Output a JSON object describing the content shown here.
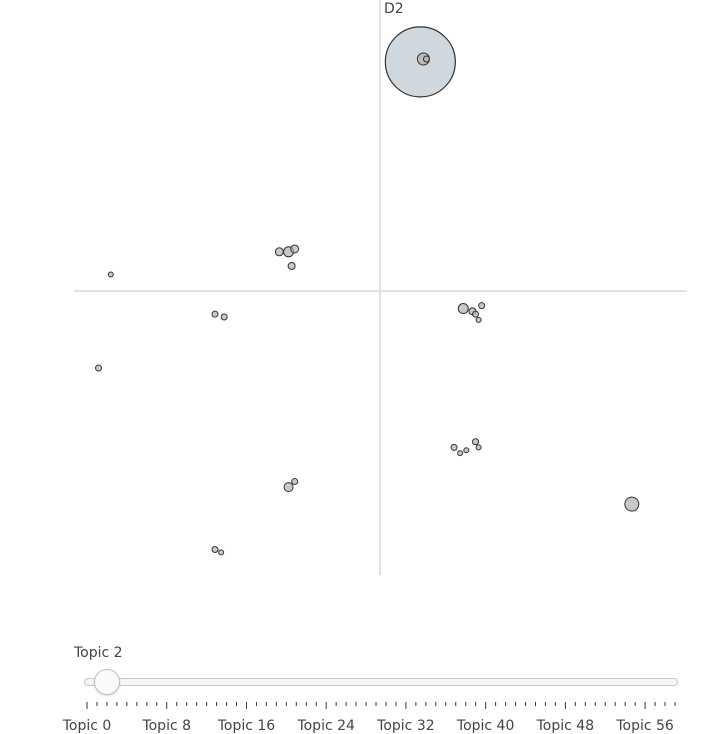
{
  "chart_data": {
    "type": "scatter",
    "xlabel": "",
    "ylabel": "D2",
    "xlim": [
      -10,
      10
    ],
    "ylim": [
      -10,
      10
    ],
    "grid": false,
    "points": [
      {
        "x": 1.3,
        "y": 8.1,
        "size": 35,
        "highlighted": true
      },
      {
        "x": 1.4,
        "y": 8.2,
        "size": 6
      },
      {
        "x": 1.5,
        "y": 8.2,
        "size": 3
      },
      {
        "x": -8.8,
        "y": 0.6,
        "size": 2.5
      },
      {
        "x": -3.3,
        "y": 1.4,
        "size": 4
      },
      {
        "x": -3.0,
        "y": 1.4,
        "size": 5
      },
      {
        "x": -2.8,
        "y": 1.5,
        "size": 4
      },
      {
        "x": -2.9,
        "y": 0.9,
        "size": 3.5
      },
      {
        "x": -5.4,
        "y": -0.8,
        "size": 3
      },
      {
        "x": -5.1,
        "y": -0.9,
        "size": 3
      },
      {
        "x": -9.2,
        "y": -2.7,
        "size": 3
      },
      {
        "x": 2.7,
        "y": -0.6,
        "size": 5
      },
      {
        "x": 3.0,
        "y": -0.7,
        "size": 3.5
      },
      {
        "x": 3.1,
        "y": -0.8,
        "size": 3
      },
      {
        "x": 3.3,
        "y": -0.5,
        "size": 3
      },
      {
        "x": 3.2,
        "y": -1.0,
        "size": 2.5
      },
      {
        "x": 2.4,
        "y": -5.5,
        "size": 3
      },
      {
        "x": 2.6,
        "y": -5.7,
        "size": 2.5
      },
      {
        "x": 2.8,
        "y": -5.6,
        "size": 2.5
      },
      {
        "x": 3.1,
        "y": -5.3,
        "size": 3
      },
      {
        "x": 3.2,
        "y": -5.5,
        "size": 2.5
      },
      {
        "x": -3.0,
        "y": -6.9,
        "size": 4.5
      },
      {
        "x": -2.8,
        "y": -6.7,
        "size": 3
      },
      {
        "x": 8.2,
        "y": -7.5,
        "size": 7
      },
      {
        "x": -5.4,
        "y": -9.1,
        "size": 3
      },
      {
        "x": -5.2,
        "y": -9.2,
        "size": 2.5
      }
    ]
  },
  "slider": {
    "current_label": "Topic 2",
    "value": 2,
    "min": 0,
    "max": 59,
    "tick_labels": [
      "Topic 0",
      "Topic 8",
      "Topic 16",
      "Topic 24",
      "Topic 32",
      "Topic 40",
      "Topic 48",
      "Topic 56"
    ],
    "tick_values": [
      0,
      8,
      16,
      24,
      32,
      40,
      48,
      56
    ]
  },
  "colors": {
    "marker_fill": "#b0b0b0",
    "marker_stroke": "#333333",
    "highlight_fill": "#cfd8de",
    "axis_line": "#e2e2e2"
  }
}
